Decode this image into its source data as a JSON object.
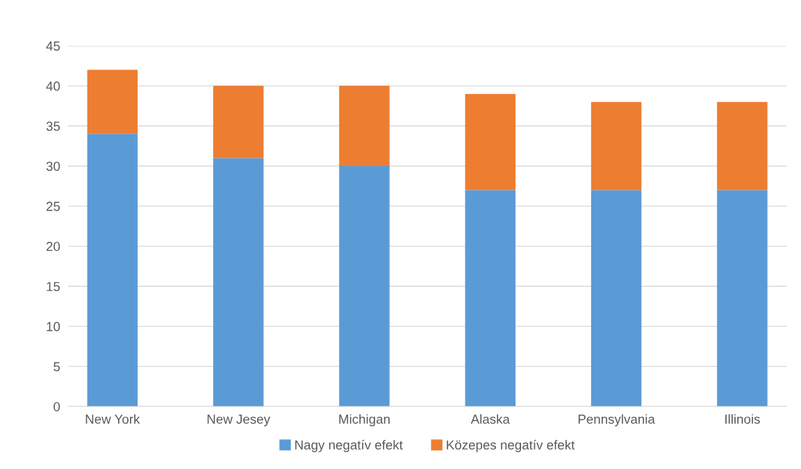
{
  "chart_data": {
    "type": "bar",
    "stacked": true,
    "categories": [
      "New York",
      "New Jesey",
      "Michigan",
      "Alaska",
      "Pennsylvania",
      "Illinois"
    ],
    "series": [
      {
        "name": "Nagy negatív efekt",
        "color": "#5b9bd5",
        "values": [
          34,
          31,
          30,
          27,
          27,
          27
        ]
      },
      {
        "name": "Közepes negatív efekt",
        "color": "#ed7d31",
        "values": [
          8,
          9,
          10,
          12,
          11,
          11
        ]
      }
    ],
    "ylim": [
      0,
      45
    ],
    "yticks": [
      0,
      5,
      10,
      15,
      20,
      25,
      30,
      35,
      40,
      45
    ],
    "grid": "y",
    "legend": "bottom"
  }
}
